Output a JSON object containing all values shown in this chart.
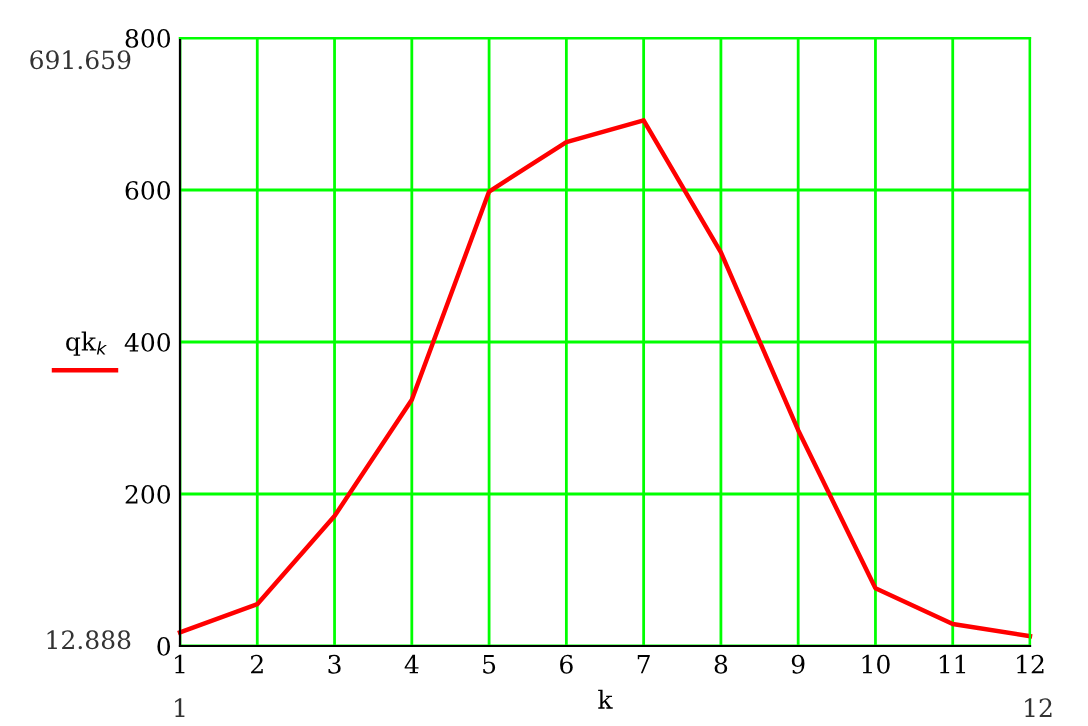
{
  "chart_data": {
    "type": "line",
    "xlabel": "k",
    "x": [
      1,
      2,
      3,
      4,
      5,
      6,
      7,
      8,
      9,
      10,
      11,
      12
    ],
    "series": [
      {
        "name": "qk$_{k}$",
        "color": "#ff0000",
        "values": [
          18,
          55,
          171,
          324,
          598,
          663,
          691.659,
          518,
          284,
          76,
          29,
          12.888
        ]
      }
    ],
    "xlim": [
      1,
      12
    ],
    "ylim": [
      0,
      800
    ],
    "xticks": [
      1,
      2,
      3,
      4,
      5,
      6,
      7,
      8,
      9,
      10,
      11,
      12
    ],
    "yticks": [
      0,
      200,
      400,
      600,
      800
    ],
    "grid": true,
    "legend": "left",
    "marker": "none",
    "line_style": "solid",
    "annotations": [
      "691.659",
      "12.888",
      "1",
      "12"
    ]
  }
}
